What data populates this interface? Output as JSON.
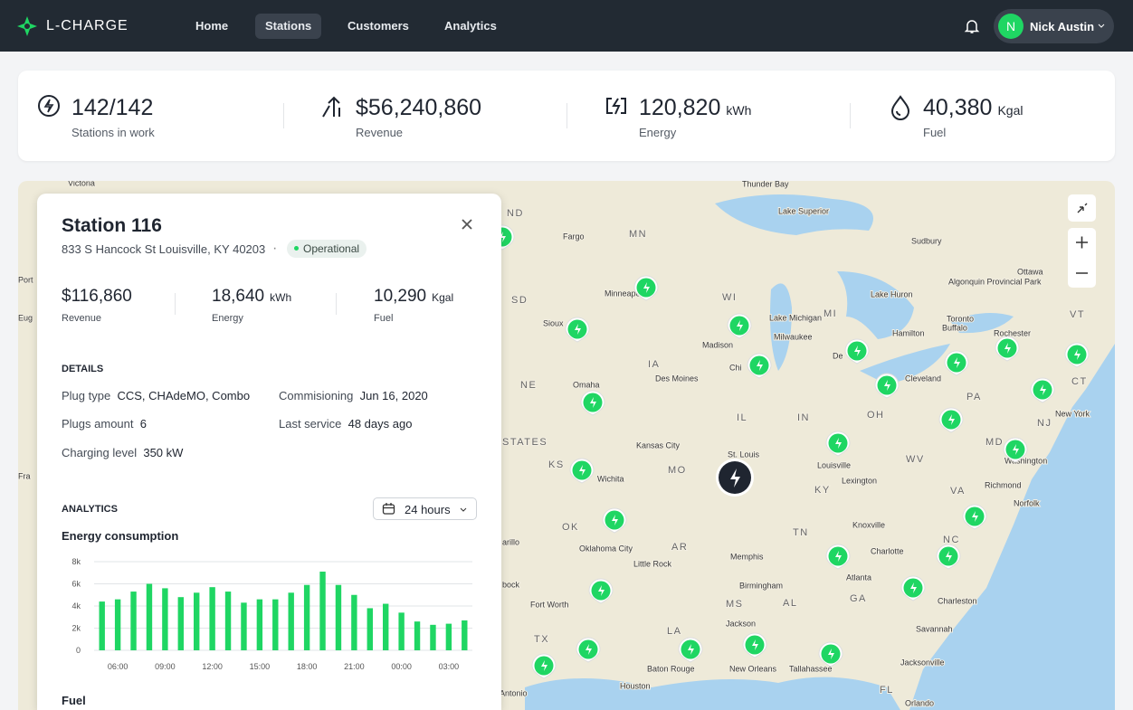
{
  "header": {
    "brand": "L-CHARGE",
    "nav": [
      "Home",
      "Stations",
      "Customers",
      "Analytics"
    ],
    "user": {
      "initial": "N",
      "name": "Nick Austin"
    }
  },
  "stats": [
    {
      "value": "142/142",
      "label": "Stations in work"
    },
    {
      "value": "$56,240,860",
      "label": "Revenue"
    },
    {
      "value": "120,820",
      "unit": "kWh",
      "label": "Energy"
    },
    {
      "value": "40,380",
      "unit": "Kgal",
      "label": "Fuel"
    }
  ],
  "panel": {
    "title": "Station 116",
    "address": "833 S Hancock St Louisville, KY 40203",
    "status": "Operational",
    "metrics": [
      {
        "value": "$116,860",
        "label": "Revenue"
      },
      {
        "value": "18,640",
        "unit": "kWh",
        "label": "Energy"
      },
      {
        "value": "10,290",
        "unit": "Kgal",
        "label": "Fuel"
      }
    ],
    "details_title": "DETAILS",
    "details": [
      {
        "label": "Plug type",
        "value": "CCS, CHAdeMO, Combo"
      },
      {
        "label": "Commisioning",
        "value": "Jun 16, 2020"
      },
      {
        "label": "Plugs amount",
        "value": "6"
      },
      {
        "label": "Last service",
        "value": "48 days ago"
      },
      {
        "label": "Charging level",
        "value": "350 kW"
      }
    ],
    "analytics_title": "ANALYTICS",
    "period": "24 hours",
    "chart_data": {
      "type": "bar",
      "title": "Energy consumption",
      "categories": [
        null,
        "06:00",
        null,
        null,
        "09:00",
        null,
        null,
        "12:00",
        null,
        null,
        "15:00",
        null,
        null,
        "18:00",
        null,
        null,
        "21:00",
        null,
        null,
        "00:00",
        null,
        null,
        "03:00",
        null
      ],
      "values": [
        4400,
        4600,
        5300,
        6000,
        5600,
        4800,
        5200,
        5700,
        5300,
        4300,
        4600,
        4600,
        5200,
        5900,
        7100,
        5900,
        5000,
        3800,
        4200,
        3400,
        2600,
        2300,
        2400,
        2700
      ],
      "color": "#1fd663",
      "ylim": [
        0,
        8000
      ],
      "yticks": [
        0,
        {
          "value": 2000,
          "label": "2k"
        },
        {
          "value": 4000,
          "label": "4k"
        },
        {
          "value": 6000,
          "label": "6k"
        },
        {
          "value": 8000,
          "label": "8k"
        }
      ],
      "grid": true
    },
    "next_section": "Fuel"
  },
  "map": {
    "labels": [
      "Victoria",
      "Thunder Bay",
      "Lake Superior",
      "ND",
      "Fargo",
      "MN",
      "Sudbury",
      "Algonquin Provincial Park",
      "Ottawa",
      "Port",
      "SD",
      "Minneapolis",
      "WI",
      "Lake Huron",
      "VT",
      "Eug",
      "Sioux",
      "Lake Michigan",
      "MI",
      "Toronto",
      "Madison",
      "Milwaukee",
      "Hamilton",
      "Rochester",
      "Buffalo",
      "IA",
      "Des Moines",
      "Chi",
      "De",
      "Cleveland",
      "CT",
      "NE",
      "Omaha",
      "PA",
      "NJ",
      "New York",
      "IL",
      "IN",
      "OH",
      "STATES",
      "Kansas City",
      "St. Louis",
      "MD",
      "KS",
      "Wichita",
      "MO",
      "Louisville",
      "WV",
      "Washington",
      "Lexington",
      "KY",
      "Richmond",
      "VA",
      "Norfolk",
      "OK",
      "Knoxville",
      "Oklahoma City",
      "AR",
      "TN",
      "Charlotte",
      "NC",
      "Little Rock",
      "Memphis",
      "Atlanta",
      "Fort Worth",
      "MS",
      "AL",
      "Birmingham",
      "GA",
      "Charleston",
      "Jackson",
      "LA",
      "Savannah",
      "TX",
      "Baton Rouge",
      "New Orleans",
      "Tallahassee",
      "Jacksonville",
      "Houston",
      "San Antonio",
      "FL",
      "Orlando",
      "Fra",
      "arillo",
      "bock"
    ]
  }
}
